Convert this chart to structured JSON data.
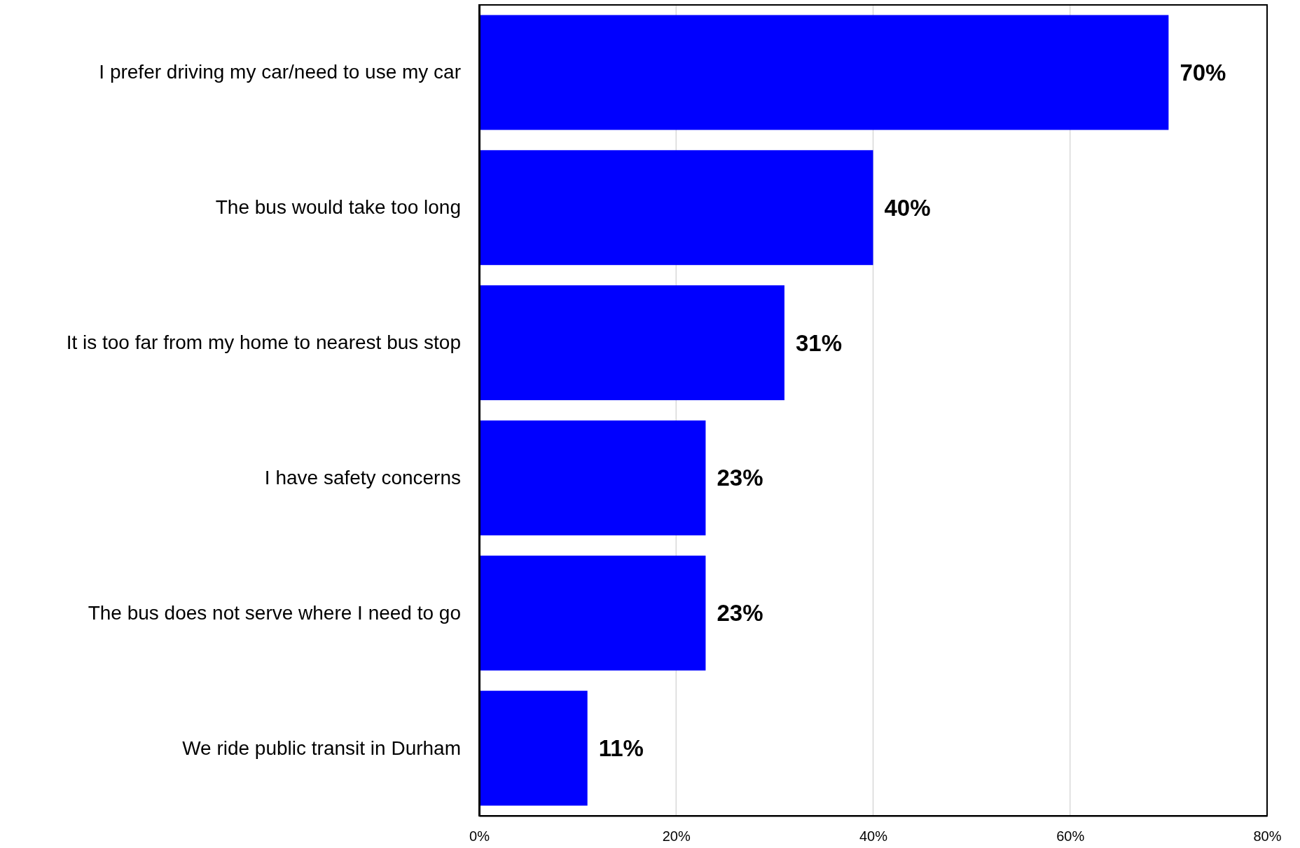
{
  "chart_data": {
    "type": "bar",
    "orientation": "horizontal",
    "categories": [
      "I prefer driving my car/need to use my car",
      "The bus would take too long",
      "It is too far from my home to nearest bus stop",
      "I have safety concerns",
      "The bus does not serve where I need to go",
      "We ride public transit in Durham"
    ],
    "values": [
      70,
      40,
      31,
      23,
      23,
      11
    ],
    "color": "#0000ff",
    "data_labels": true,
    "value_labels": [
      "70%",
      "40%",
      "31%",
      "23%",
      "23%",
      "11%"
    ],
    "xlim": [
      0,
      80
    ],
    "xticks": [
      {
        "value": 0,
        "label": "0%"
      },
      {
        "value": 20,
        "label": "20%"
      },
      {
        "value": 40,
        "label": "40%"
      },
      {
        "value": 60,
        "label": "60%"
      },
      {
        "value": 80,
        "label": "80%"
      }
    ],
    "grid": "x"
  }
}
